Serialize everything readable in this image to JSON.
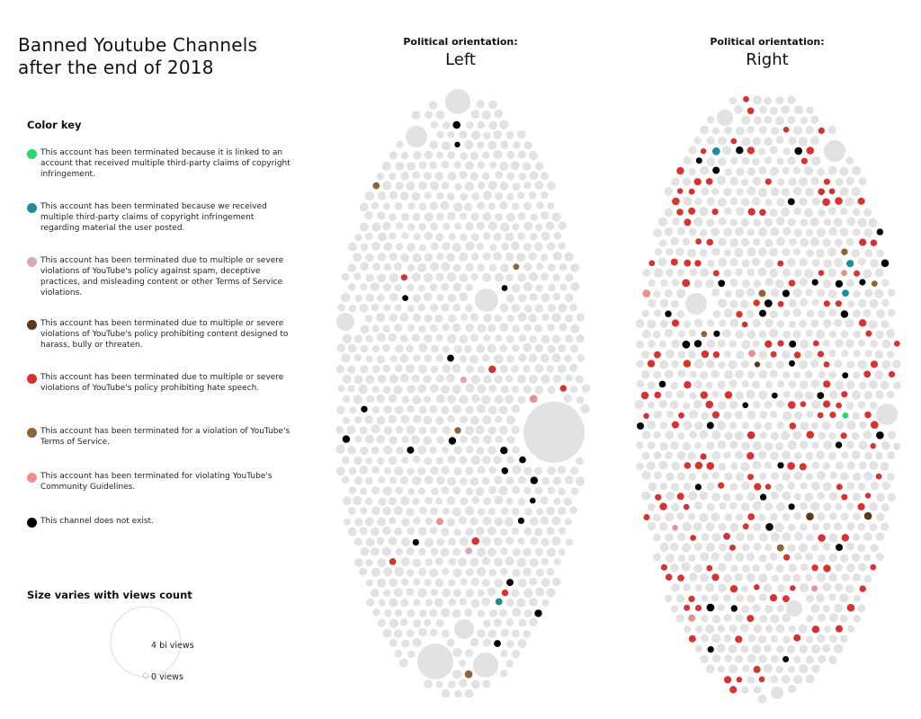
{
  "title_lines": [
    "Banned Youtube Channels",
    "after the end of 2018"
  ],
  "color_key": {
    "heading": "Color key",
    "items": [
      {
        "color": "#27d86b",
        "text": "This account has been terminated because it is linked to an account that received multiple third-party claims of copyright infringement."
      },
      {
        "color": "#1d8e99",
        "text": "This account has been terminated because we received multiple third-party claims of copyright infringement regarding material the user posted."
      },
      {
        "color": "#d9a6bd",
        "text": "This account has been terminated due to multiple or severe violations of YouTube's policy against spam, deceptive practices, and misleading content or other Terms of Service violations."
      },
      {
        "color": "#5a3a17",
        "text": "This account has been terminated due to multiple or severe violations of YouTube's policy prohibiting content designed to harass, bully or threaten."
      },
      {
        "color": "#d9322e",
        "text": "This account has been terminated due to multiple or severe violations of YouTube's policy prohibiting hate speech."
      },
      {
        "color": "#8d6534",
        "text": "This account has been terminated for a violation of YouTube's Terms of Service."
      },
      {
        "color": "#eb8f8a",
        "text": "This account has been terminated for violating YouTube's Community Guidelines."
      },
      {
        "color": "#000000",
        "text": "This channel does not exist."
      }
    ]
  },
  "size_legend": {
    "heading": "Size varies with views count",
    "max_label": "4 bi views",
    "min_label": "0 views"
  },
  "chart_data": {
    "type": "scatter",
    "encoding": "bubble pack; color = termination reason, size = views count",
    "unbanned_color": "#e2e2e2",
    "panels": [
      {
        "subtitle": "Political orientation:",
        "name": "Left",
        "highlighted": [
          {
            "category": "hate-speech",
            "count": 6
          },
          {
            "category": "does-not-exist",
            "count": 19
          },
          {
            "category": "tos-violation",
            "count": 4
          },
          {
            "category": "copyright-claims",
            "count": 1
          },
          {
            "category": "spam",
            "count": 2
          },
          {
            "category": "community-guidelines",
            "count": 2
          }
        ],
        "largest_bubble_views": 4000000000
      },
      {
        "subtitle": "Political orientation:",
        "name": "Right",
        "highlighted": [
          {
            "category": "hate-speech",
            "count": 150
          },
          {
            "category": "does-not-exist",
            "count": 40
          },
          {
            "category": "tos-violation",
            "count": 5
          },
          {
            "category": "harassment",
            "count": 3
          },
          {
            "category": "copyright-claims",
            "count": 3
          },
          {
            "category": "linked-account",
            "count": 1
          },
          {
            "category": "community-guidelines",
            "count": 6
          }
        ]
      }
    ]
  }
}
